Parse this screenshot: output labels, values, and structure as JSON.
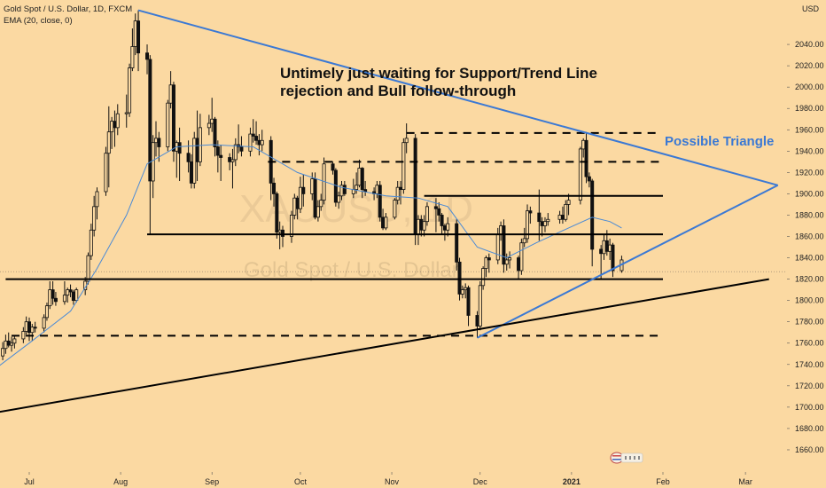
{
  "legend": {
    "symbol_line": "Gold Spot / U.S. Dollar, 1D, FXCM",
    "indicator_line": "EMA (20, close, 0)"
  },
  "unit": "USD",
  "watermark": {
    "ticker": "XAUUSD, 1D",
    "name": "Gold Spot / U.S. Dollar"
  },
  "annotations": {
    "headline_1": "Untimely just waiting for Support/Trend Line",
    "headline_2": "rejection and Bull follow-through",
    "triangle": "Possible Triangle"
  },
  "colors": {
    "background": "#fbd9a2",
    "candle": "#111111",
    "ema": "#4a8ad6",
    "trend_blue": "#3b79d4",
    "support_black": "#000000"
  },
  "chart_data": {
    "type": "candlestick",
    "title": "Gold Spot / U.S. Dollar, 1D, FXCM",
    "ylabel": "USD",
    "ylim": [
      1650,
      2070
    ],
    "y_ticks": [
      1660,
      1680,
      1700,
      1720,
      1740,
      1760,
      1780,
      1800,
      1820,
      1840,
      1860,
      1880,
      1900,
      1920,
      1940,
      1960,
      1980,
      2000,
      2020,
      2040
    ],
    "x_ticks": [
      {
        "label": "Jul",
        "date": "2020-07-01"
      },
      {
        "label": "Aug",
        "date": "2020-08-01"
      },
      {
        "label": "Sep",
        "date": "2020-09-01"
      },
      {
        "label": "Oct",
        "date": "2020-10-01"
      },
      {
        "label": "Nov",
        "date": "2020-11-01"
      },
      {
        "label": "Dec",
        "date": "2020-12-01"
      },
      {
        "label": "2021",
        "date": "2021-01-01",
        "bold": true
      },
      {
        "label": "Feb",
        "date": "2021-02-01"
      },
      {
        "label": "Mar",
        "date": "2021-03-01"
      }
    ],
    "price_line": 1827,
    "horizontal_levels": [
      {
        "price": 1957,
        "style": "dashed",
        "from": "2020-11-06",
        "to": "2021-01-31"
      },
      {
        "price": 1930,
        "style": "dashed",
        "from": "2020-09-20",
        "to": "2021-01-31"
      },
      {
        "price": 1898,
        "style": "solid",
        "from": "2020-11-12",
        "to": "2021-02-01"
      },
      {
        "price": 1862,
        "style": "solid",
        "from": "2020-08-10",
        "to": "2021-02-01"
      },
      {
        "price": 1820,
        "style": "solid",
        "from": "2020-06-23",
        "to": "2021-02-01"
      },
      {
        "price": 1767,
        "style": "dashed",
        "from": "2020-06-25",
        "to": "2021-01-31"
      }
    ],
    "trend_lines": [
      {
        "name": "upper-triangle",
        "color": "blue",
        "from": [
          "2020-08-07",
          2072
        ],
        "to": [
          "2021-03-12",
          1908
        ]
      },
      {
        "name": "lower-triangle",
        "color": "blue",
        "from": [
          "2020-11-30",
          1765
        ],
        "to": [
          "2021-03-12",
          1908
        ]
      },
      {
        "name": "long-support",
        "color": "black",
        "from": [
          "2020-05-15",
          1678
        ],
        "to": [
          "2021-03-09",
          1820
        ]
      }
    ],
    "candles": [
      [
        "2020-06-19",
        1742,
        1753,
        1733,
        1748
      ],
      [
        "2020-06-22",
        1748,
        1761,
        1744,
        1755
      ],
      [
        "2020-06-23",
        1755,
        1768,
        1750,
        1762
      ],
      [
        "2020-06-24",
        1762,
        1770,
        1756,
        1758
      ],
      [
        "2020-06-25",
        1758,
        1766,
        1752,
        1760
      ],
      [
        "2020-06-26",
        1760,
        1767,
        1755,
        1764
      ],
      [
        "2020-06-29",
        1764,
        1775,
        1760,
        1771
      ],
      [
        "2020-06-30",
        1771,
        1785,
        1768,
        1780
      ],
      [
        "2020-07-01",
        1780,
        1784,
        1762,
        1770
      ],
      [
        "2020-07-02",
        1770,
        1778,
        1762,
        1775
      ],
      [
        "2020-07-03",
        1775,
        1780,
        1770,
        1774
      ],
      [
        "2020-07-06",
        1774,
        1787,
        1770,
        1784
      ],
      [
        "2020-07-07",
        1784,
        1798,
        1781,
        1795
      ],
      [
        "2020-07-08",
        1795,
        1818,
        1792,
        1810
      ],
      [
        "2020-07-09",
        1810,
        1818,
        1796,
        1802
      ],
      [
        "2020-07-10",
        1802,
        1808,
        1795,
        1799
      ],
      [
        "2020-07-13",
        1799,
        1818,
        1796,
        1805
      ],
      [
        "2020-07-14",
        1805,
        1812,
        1798,
        1810
      ],
      [
        "2020-07-15",
        1810,
        1815,
        1803,
        1808
      ],
      [
        "2020-07-16",
        1808,
        1810,
        1796,
        1800
      ],
      [
        "2020-07-17",
        1800,
        1812,
        1798,
        1810
      ],
      [
        "2020-07-20",
        1810,
        1822,
        1805,
        1818
      ],
      [
        "2020-07-21",
        1818,
        1845,
        1815,
        1842
      ],
      [
        "2020-07-22",
        1842,
        1872,
        1838,
        1866
      ],
      [
        "2020-07-23",
        1866,
        1898,
        1860,
        1888
      ],
      [
        "2020-07-24",
        1888,
        1906,
        1876,
        1902
      ],
      [
        "2020-07-27",
        1902,
        1944,
        1898,
        1938
      ],
      [
        "2020-07-28",
        1938,
        1982,
        1906,
        1958
      ],
      [
        "2020-07-29",
        1958,
        1972,
        1942,
        1968
      ],
      [
        "2020-07-30",
        1968,
        1978,
        1944,
        1962
      ],
      [
        "2020-07-31",
        1962,
        1984,
        1955,
        1975
      ],
      [
        "2020-08-03",
        1975,
        1993,
        1962,
        1976
      ],
      [
        "2020-08-04",
        1976,
        2022,
        1972,
        2018
      ],
      [
        "2020-08-05",
        2018,
        2055,
        2015,
        2038
      ],
      [
        "2020-08-06",
        2038,
        2069,
        2030,
        2062
      ],
      [
        "2020-08-07",
        2062,
        2072,
        2015,
        2032
      ],
      [
        "2020-08-10",
        2032,
        2040,
        2012,
        2026
      ],
      [
        "2020-08-11",
        2026,
        2030,
        1862,
        1912
      ],
      [
        "2020-08-12",
        1912,
        1955,
        1896,
        1948
      ],
      [
        "2020-08-13",
        1948,
        1968,
        1935,
        1952
      ],
      [
        "2020-08-14",
        1952,
        1958,
        1930,
        1944
      ],
      [
        "2020-08-17",
        1944,
        1988,
        1940,
        1985
      ],
      [
        "2020-08-18",
        1985,
        2015,
        1980,
        2002
      ],
      [
        "2020-08-19",
        2002,
        2005,
        1930,
        1940
      ],
      [
        "2020-08-20",
        1940,
        1950,
        1915,
        1948
      ],
      [
        "2020-08-21",
        1948,
        1962,
        1912,
        1938
      ],
      [
        "2020-08-24",
        1938,
        1950,
        1920,
        1930
      ],
      [
        "2020-08-25",
        1930,
        1937,
        1905,
        1910
      ],
      [
        "2020-08-26",
        1910,
        1958,
        1905,
        1952
      ],
      [
        "2020-08-27",
        1952,
        1978,
        1912,
        1930
      ],
      [
        "2020-08-28",
        1930,
        1975,
        1926,
        1962
      ],
      [
        "2020-08-31",
        1962,
        1974,
        1955,
        1966
      ],
      [
        "2020-09-01",
        1966,
        1990,
        1958,
        1970
      ],
      [
        "2020-09-02",
        1970,
        1972,
        1935,
        1944
      ],
      [
        "2020-09-03",
        1944,
        1950,
        1920,
        1936
      ],
      [
        "2020-09-04",
        1936,
        1946,
        1912,
        1934
      ],
      [
        "2020-09-07",
        1934,
        1938,
        1922,
        1930
      ],
      [
        "2020-09-08",
        1930,
        1942,
        1905,
        1932
      ],
      [
        "2020-09-09",
        1932,
        1952,
        1926,
        1946
      ],
      [
        "2020-09-10",
        1946,
        1965,
        1938,
        1944
      ],
      [
        "2020-09-11",
        1944,
        1954,
        1935,
        1940
      ],
      [
        "2020-09-14",
        1940,
        1962,
        1935,
        1956
      ],
      [
        "2020-09-15",
        1956,
        1970,
        1948,
        1954
      ],
      [
        "2020-09-16",
        1954,
        1968,
        1946,
        1950
      ],
      [
        "2020-09-17",
        1950,
        1956,
        1936,
        1946
      ],
      [
        "2020-09-18",
        1946,
        1960,
        1940,
        1950
      ],
      [
        "2020-09-21",
        1950,
        1954,
        1894,
        1910
      ],
      [
        "2020-09-22",
        1910,
        1915,
        1888,
        1900
      ],
      [
        "2020-09-23",
        1900,
        1902,
        1858,
        1864
      ],
      [
        "2020-09-24",
        1864,
        1874,
        1848,
        1866
      ],
      [
        "2020-09-25",
        1866,
        1870,
        1850,
        1860
      ],
      [
        "2020-09-28",
        1860,
        1884,
        1854,
        1880
      ],
      [
        "2020-09-29",
        1880,
        1900,
        1876,
        1896
      ],
      [
        "2020-09-30",
        1896,
        1898,
        1876,
        1886
      ],
      [
        "2020-10-01",
        1886,
        1916,
        1882,
        1906
      ],
      [
        "2020-10-02",
        1906,
        1918,
        1888,
        1900
      ],
      [
        "2020-10-05",
        1900,
        1920,
        1894,
        1914
      ],
      [
        "2020-10-06",
        1914,
        1920,
        1876,
        1878
      ],
      [
        "2020-10-07",
        1878,
        1894,
        1874,
        1888
      ],
      [
        "2020-10-08",
        1888,
        1900,
        1884,
        1894
      ],
      [
        "2020-10-09",
        1894,
        1934,
        1890,
        1928
      ],
      [
        "2020-10-12",
        1928,
        1930,
        1918,
        1922
      ],
      [
        "2020-10-13",
        1922,
        1924,
        1888,
        1892
      ],
      [
        "2020-10-14",
        1892,
        1902,
        1886,
        1898
      ],
      [
        "2020-10-15",
        1898,
        1912,
        1894,
        1908
      ],
      [
        "2020-10-16",
        1908,
        1912,
        1898,
        1900
      ],
      [
        "2020-10-19",
        1900,
        1914,
        1896,
        1904
      ],
      [
        "2020-10-20",
        1904,
        1920,
        1900,
        1908
      ],
      [
        "2020-10-21",
        1908,
        1932,
        1906,
        1924
      ],
      [
        "2020-10-22",
        1924,
        1925,
        1896,
        1904
      ],
      [
        "2020-10-23",
        1904,
        1912,
        1898,
        1902
      ],
      [
        "2020-10-26",
        1902,
        1906,
        1894,
        1900
      ],
      [
        "2020-10-27",
        1900,
        1912,
        1896,
        1908
      ],
      [
        "2020-10-28",
        1908,
        1912,
        1874,
        1878
      ],
      [
        "2020-10-29",
        1878,
        1886,
        1866,
        1868
      ],
      [
        "2020-10-30",
        1868,
        1882,
        1866,
        1878
      ],
      [
        "2020-11-02",
        1878,
        1896,
        1876,
        1894
      ],
      [
        "2020-11-03",
        1894,
        1912,
        1890,
        1906
      ],
      [
        "2020-11-04",
        1906,
        1912,
        1890,
        1904
      ],
      [
        "2020-11-05",
        1904,
        1952,
        1900,
        1948
      ],
      [
        "2020-11-06",
        1948,
        1966,
        1938,
        1952
      ],
      [
        "2020-11-09",
        1952,
        1956,
        1852,
        1862
      ],
      [
        "2020-11-10",
        1862,
        1880,
        1852,
        1876
      ],
      [
        "2020-11-11",
        1876,
        1880,
        1860,
        1866
      ],
      [
        "2020-11-12",
        1866,
        1880,
        1860,
        1874
      ],
      [
        "2020-11-13",
        1874,
        1892,
        1870,
        1888
      ],
      [
        "2020-11-16",
        1888,
        1896,
        1864,
        1886
      ],
      [
        "2020-11-17",
        1886,
        1892,
        1874,
        1880
      ],
      [
        "2020-11-18",
        1880,
        1882,
        1862,
        1870
      ],
      [
        "2020-11-19",
        1870,
        1872,
        1856,
        1866
      ],
      [
        "2020-11-20",
        1866,
        1878,
        1860,
        1872
      ],
      [
        "2020-11-23",
        1872,
        1876,
        1828,
        1836
      ],
      [
        "2020-11-24",
        1836,
        1840,
        1800,
        1806
      ],
      [
        "2020-11-25",
        1806,
        1814,
        1802,
        1810
      ],
      [
        "2020-11-26",
        1810,
        1816,
        1802,
        1812
      ],
      [
        "2020-11-27",
        1812,
        1814,
        1776,
        1786
      ],
      [
        "2020-11-30",
        1786,
        1790,
        1765,
        1776
      ],
      [
        "2020-12-01",
        1776,
        1818,
        1772,
        1814
      ],
      [
        "2020-12-02",
        1814,
        1832,
        1810,
        1830
      ],
      [
        "2020-12-03",
        1830,
        1842,
        1822,
        1840
      ],
      [
        "2020-12-04",
        1840,
        1844,
        1826,
        1838
      ],
      [
        "2020-12-07",
        1838,
        1868,
        1834,
        1862
      ],
      [
        "2020-12-08",
        1862,
        1874,
        1856,
        1870
      ],
      [
        "2020-12-09",
        1870,
        1876,
        1826,
        1834
      ],
      [
        "2020-12-10",
        1834,
        1844,
        1828,
        1838
      ],
      [
        "2020-12-11",
        1838,
        1846,
        1830,
        1840
      ],
      [
        "2020-12-14",
        1840,
        1842,
        1820,
        1828
      ],
      [
        "2020-12-15",
        1828,
        1858,
        1824,
        1854
      ],
      [
        "2020-12-16",
        1854,
        1868,
        1850,
        1858
      ],
      [
        "2020-12-17",
        1858,
        1890,
        1854,
        1884
      ],
      [
        "2020-12-18",
        1884,
        1888,
        1872,
        1882
      ],
      [
        "2020-12-21",
        1882,
        1904,
        1856,
        1874
      ],
      [
        "2020-12-22",
        1874,
        1878,
        1860,
        1870
      ],
      [
        "2020-12-23",
        1870,
        1878,
        1864,
        1874
      ],
      [
        "2020-12-24",
        1874,
        1882,
        1870,
        1876
      ],
      [
        "2020-12-28",
        1876,
        1884,
        1872,
        1880
      ],
      [
        "2020-12-29",
        1880,
        1888,
        1872,
        1876
      ],
      [
        "2020-12-30",
        1876,
        1894,
        1874,
        1890
      ],
      [
        "2020-12-31",
        1890,
        1900,
        1880,
        1894
      ],
      [
        "2021-01-04",
        1894,
        1944,
        1890,
        1942
      ],
      [
        "2021-01-05",
        1942,
        1952,
        1934,
        1950
      ],
      [
        "2021-01-06",
        1950,
        1958,
        1910,
        1916
      ],
      [
        "2021-01-07",
        1916,
        1920,
        1906,
        1912
      ],
      [
        "2021-01-08",
        1912,
        1914,
        1832,
        1848
      ],
      [
        "2021-01-11",
        1848,
        1852,
        1820,
        1844
      ],
      [
        "2021-01-12",
        1844,
        1862,
        1838,
        1856
      ],
      [
        "2021-01-13",
        1856,
        1866,
        1842,
        1846
      ],
      [
        "2021-01-14",
        1846,
        1858,
        1838,
        1852
      ],
      [
        "2021-01-15",
        1852,
        1854,
        1822,
        1828
      ],
      [
        "2021-01-18",
        1828,
        1842,
        1826,
        1838
      ]
    ],
    "ema": [
      [
        "2020-06-19",
        1735
      ],
      [
        "2020-07-01",
        1760
      ],
      [
        "2020-07-15",
        1790
      ],
      [
        "2020-07-24",
        1830
      ],
      [
        "2020-08-03",
        1880
      ],
      [
        "2020-08-10",
        1928
      ],
      [
        "2020-08-20",
        1944
      ],
      [
        "2020-09-01",
        1946
      ],
      [
        "2020-09-15",
        1944
      ],
      [
        "2020-09-30",
        1920
      ],
      [
        "2020-10-15",
        1906
      ],
      [
        "2020-10-30",
        1898
      ],
      [
        "2020-11-10",
        1896
      ],
      [
        "2020-11-20",
        1888
      ],
      [
        "2020-11-30",
        1850
      ],
      [
        "2020-12-10",
        1840
      ],
      [
        "2020-12-20",
        1854
      ],
      [
        "2020-12-31",
        1868
      ],
      [
        "2021-01-08",
        1878
      ],
      [
        "2021-01-14",
        1874
      ],
      [
        "2021-01-18",
        1868
      ]
    ]
  }
}
